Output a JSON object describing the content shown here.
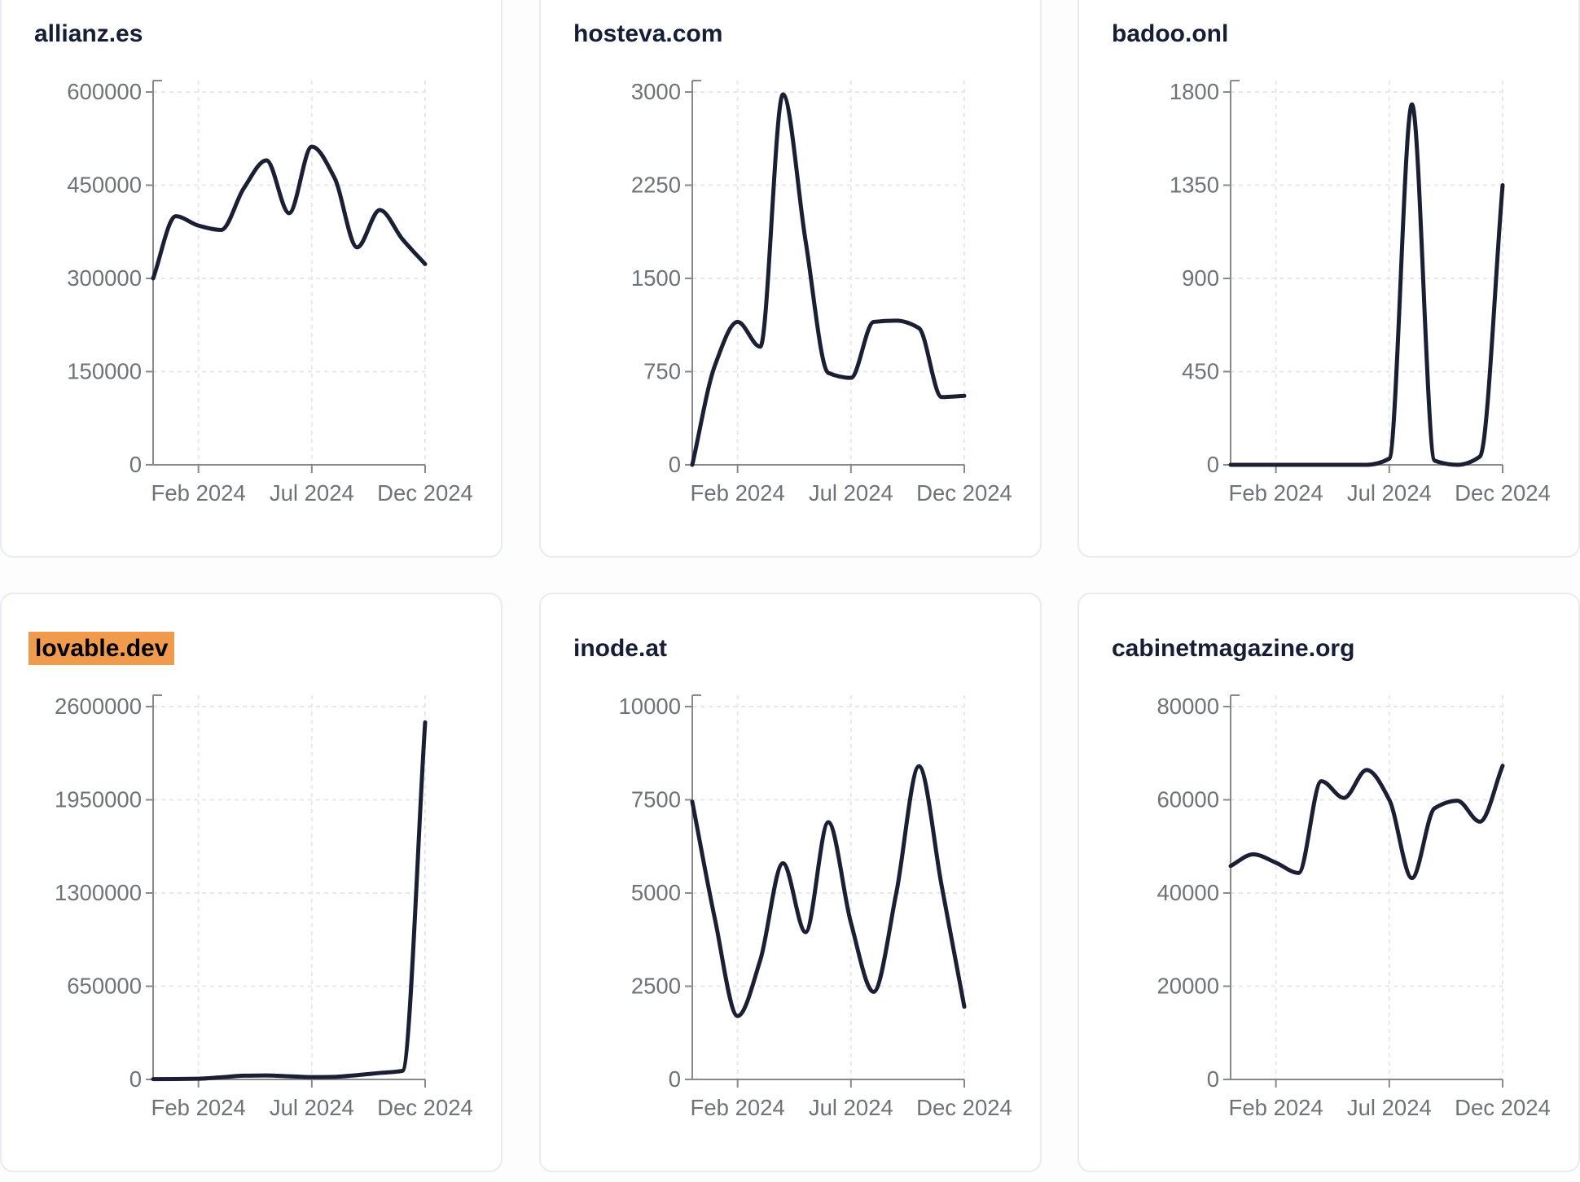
{
  "colors": {
    "line": "#1a1f33",
    "axis": "#87898d",
    "tick_label": "#6f7377",
    "grid": "#e6e8ec",
    "title": "#161e36",
    "highlight_bg": "#ef9a4c",
    "highlight_text": "#000000",
    "card_border": "#e8ecf2",
    "card_bg": "#ffffff",
    "page_bg": "#fdfdfe"
  },
  "x_axis": {
    "months": [
      "Dec 2023",
      "Jan 2024",
      "Feb 2024",
      "Mar 2024",
      "Apr 2024",
      "May 2024",
      "Jun 2024",
      "Jul 2024",
      "Aug 2024",
      "Sep 2024",
      "Oct 2024",
      "Nov 2024",
      "Dec 2024"
    ],
    "tick_labels": [
      "Feb 2024",
      "Jul 2024",
      "Dec 2024"
    ],
    "tick_indices": [
      2,
      7,
      12
    ]
  },
  "chart_data": [
    {
      "type": "line",
      "title": "allianz.es",
      "highlighted": false,
      "x": [
        "Dec 2023",
        "Jan 2024",
        "Feb 2024",
        "Mar 2024",
        "Apr 2024",
        "May 2024",
        "Jun 2024",
        "Jul 2024",
        "Aug 2024",
        "Sep 2024",
        "Oct 2024",
        "Nov 2024",
        "Dec 2024"
      ],
      "values": [
        300000,
        400000,
        385000,
        378000,
        445000,
        490000,
        405000,
        512000,
        462000,
        350000,
        410000,
        363000,
        323000
      ],
      "yticks": [
        0,
        150000,
        300000,
        450000,
        600000
      ],
      "ylim": [
        0,
        600000
      ],
      "x_tick_labels": [
        "Feb 2024",
        "Jul 2024",
        "Dec 2024"
      ],
      "grid": true,
      "legend": "none"
    },
    {
      "type": "line",
      "title": "hosteva.com",
      "highlighted": false,
      "x": [
        "Dec 2023",
        "Jan 2024",
        "Feb 2024",
        "Mar 2024",
        "Apr 2024",
        "May 2024",
        "Jun 2024",
        "Jul 2024",
        "Aug 2024",
        "Sep 2024",
        "Oct 2024",
        "Nov 2024",
        "Dec 2024"
      ],
      "values": [
        0,
        800,
        1150,
        950,
        2980,
        1800,
        740,
        700,
        1150,
        1160,
        1100,
        545,
        555
      ],
      "yticks": [
        0,
        750,
        1500,
        2250,
        3000
      ],
      "ylim": [
        0,
        3000
      ],
      "x_tick_labels": [
        "Feb 2024",
        "Jul 2024",
        "Dec 2024"
      ],
      "grid": true,
      "legend": "none"
    },
    {
      "type": "line",
      "title": "badoo.onl",
      "highlighted": false,
      "x": [
        "Dec 2023",
        "Jan 2024",
        "Feb 2024",
        "Mar 2024",
        "Apr 2024",
        "May 2024",
        "Jun 2024",
        "Jul 2024",
        "Aug 2024",
        "Sep 2024",
        "Oct 2024",
        "Nov 2024",
        "Dec 2024"
      ],
      "values": [
        0,
        0,
        0,
        0,
        0,
        0,
        0,
        30,
        1740,
        20,
        0,
        40,
        1350
      ],
      "yticks": [
        0,
        450,
        900,
        1350,
        1800
      ],
      "ylim": [
        0,
        1800
      ],
      "x_tick_labels": [
        "Feb 2024",
        "Jul 2024",
        "Dec 2024"
      ],
      "grid": true,
      "legend": "none"
    },
    {
      "type": "line",
      "title": "lovable.dev",
      "highlighted": true,
      "x": [
        "Dec 2023",
        "Jan 2024",
        "Feb 2024",
        "Mar 2024",
        "Apr 2024",
        "May 2024",
        "Jun 2024",
        "Jul 2024",
        "Aug 2024",
        "Sep 2024",
        "Oct 2024",
        "Nov 2024",
        "Dec 2024"
      ],
      "values": [
        2000,
        3000,
        5000,
        15000,
        26000,
        28000,
        22000,
        16000,
        18000,
        30000,
        45000,
        60000,
        2490000
      ],
      "yticks": [
        0,
        650000,
        1300000,
        1950000,
        2600000
      ],
      "ylim": [
        0,
        2600000
      ],
      "x_tick_labels": [
        "Feb 2024",
        "Jul 2024",
        "Dec 2024"
      ],
      "grid": true,
      "legend": "none"
    },
    {
      "type": "line",
      "title": "inode.at",
      "highlighted": false,
      "x": [
        "Dec 2023",
        "Jan 2024",
        "Feb 2024",
        "Mar 2024",
        "Apr 2024",
        "May 2024",
        "Jun 2024",
        "Jul 2024",
        "Aug 2024",
        "Sep 2024",
        "Oct 2024",
        "Nov 2024",
        "Dec 2024"
      ],
      "values": [
        7450,
        4300,
        1700,
        3200,
        5800,
        3950,
        6900,
        4200,
        2350,
        5000,
        8400,
        5200,
        1950
      ],
      "yticks": [
        0,
        2500,
        5000,
        7500,
        10000
      ],
      "ylim": [
        0,
        10000
      ],
      "x_tick_labels": [
        "Feb 2024",
        "Jul 2024",
        "Dec 2024"
      ],
      "grid": true,
      "legend": "none"
    },
    {
      "type": "line",
      "title": "cabinetmagazine.org",
      "highlighted": false,
      "x": [
        "Dec 2023",
        "Jan 2024",
        "Feb 2024",
        "Mar 2024",
        "Apr 2024",
        "May 2024",
        "Jun 2024",
        "Jul 2024",
        "Aug 2024",
        "Sep 2024",
        "Oct 2024",
        "Nov 2024",
        "Dec 2024"
      ],
      "values": [
        45800,
        48300,
        46500,
        44300,
        64000,
        60400,
        66400,
        60000,
        43200,
        58200,
        59800,
        55300,
        67300
      ],
      "yticks": [
        0,
        20000,
        40000,
        60000,
        80000
      ],
      "ylim": [
        0,
        80000
      ],
      "x_tick_labels": [
        "Feb 2024",
        "Jul 2024",
        "Dec 2024"
      ],
      "grid": true,
      "legend": "none"
    }
  ]
}
